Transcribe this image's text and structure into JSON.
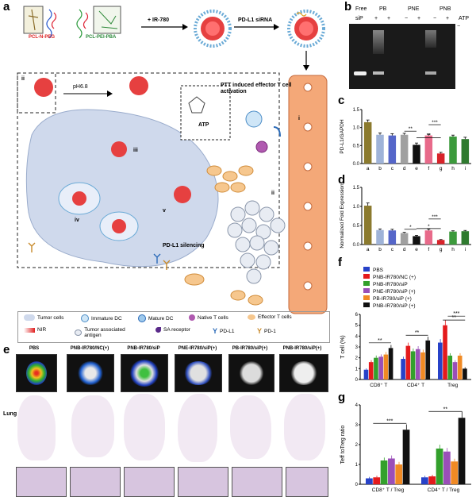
{
  "panels": {
    "a": "a",
    "b": "b",
    "c": "c",
    "d": "d",
    "e": "e",
    "f": "f",
    "g": "g"
  },
  "panel_a": {
    "components": [
      "PCL-N-PEG",
      "PCL-PEI-PBA"
    ],
    "step1": "+ IR-780",
    "step2": "PD-L1 siRNA",
    "step_ii": "ii",
    "ph": "pH6.8",
    "atp": "ATP",
    "step_iii": "iii",
    "step_iv": "iv",
    "step_v": "v",
    "silencing": "PD-L1 silencing",
    "ptt_title": "PTT induced effector T cell activation",
    "vessel_i": "i",
    "tissue_ii": "ii",
    "legend": [
      "Tumor cells",
      "Immature DC",
      "Mature DC",
      "Native T cells",
      "Effector T cells",
      "NIR",
      "Tumor associated antigen",
      "SA receptor",
      "PD-L1",
      "PD-1"
    ]
  },
  "panel_b": {
    "lanes": [
      "Free",
      "PB",
      "PNE",
      "PNB"
    ],
    "sip_label": "siP",
    "atp_label": "ATP",
    "signs": [
      "+",
      "+",
      "−",
      "+",
      "−",
      "+",
      "−"
    ]
  },
  "panel_e": {
    "titles": [
      "PBS",
      "PNB-IR780/NC(+)",
      "PNB-IR780/siP",
      "PNE-IR780/siP(+)",
      "PB-IR780/siP(+)",
      "PNB-IR780/siP(+)"
    ],
    "row_label": "Lung"
  },
  "chart_data": [
    {
      "id": "c",
      "type": "bar",
      "ylabel": "PD-L1/GAPDH",
      "categories": [
        "a",
        "b",
        "c",
        "d",
        "e",
        "f",
        "g",
        "h",
        "i"
      ],
      "values": [
        1.15,
        0.8,
        0.78,
        0.8,
        0.52,
        0.78,
        0.28,
        0.75,
        0.68
      ],
      "errors": [
        0.06,
        0.05,
        0.05,
        0.04,
        0.05,
        0.04,
        0.03,
        0.04,
        0.05
      ],
      "ylim": [
        0,
        1.5
      ],
      "yticks": [
        0,
        0.5,
        1.0,
        1.5
      ],
      "colors": [
        "#8b7a2e",
        "#9fb3d8",
        "#5566c9",
        "#a0a0a0",
        "#111111",
        "#e86a8a",
        "#d8232a",
        "#3c9a3c",
        "#2f7a2f"
      ],
      "annotations": [
        "**",
        "**",
        "***"
      ]
    },
    {
      "id": "d",
      "type": "bar",
      "ylabel": "Normalized Fold Expression",
      "categories": [
        "a",
        "b",
        "c",
        "d",
        "e",
        "f",
        "g",
        "h",
        "i"
      ],
      "values": [
        1.02,
        0.38,
        0.37,
        0.3,
        0.22,
        0.37,
        0.12,
        0.34,
        0.35
      ],
      "errors": [
        0.07,
        0.03,
        0.03,
        0.02,
        0.02,
        0.03,
        0.01,
        0.02,
        0.02
      ],
      "ylim": [
        0,
        1.5
      ],
      "yticks": [
        0,
        0.5,
        1.0,
        1.5
      ],
      "colors": [
        "#8b7a2e",
        "#9fb3d8",
        "#5566c9",
        "#a0a0a0",
        "#111111",
        "#e86a8a",
        "#d8232a",
        "#3c9a3c",
        "#2f7a2f"
      ],
      "annotations": [
        "*",
        "*",
        "***"
      ]
    },
    {
      "id": "f",
      "type": "bar",
      "ylabel": "T cell (%)",
      "categories": [
        "CD8⁺ T",
        "CD4⁺ T",
        "Treg"
      ],
      "series": [
        {
          "name": "PBS",
          "values": [
            0.9,
            1.9,
            3.4
          ],
          "color": "#2742c8"
        },
        {
          "name": "PNB-IR780/NC (+)",
          "values": [
            1.6,
            3.1,
            5.0
          ],
          "color": "#e41a1c"
        },
        {
          "name": "PNB-IR780/siP",
          "values": [
            2.0,
            2.6,
            2.2
          ],
          "color": "#33a02c"
        },
        {
          "name": "PNE-IR780/siP (+)",
          "values": [
            2.1,
            2.8,
            1.6
          ],
          "color": "#9a4fb8"
        },
        {
          "name": "PB-IR780/siP (+)",
          "values": [
            2.3,
            2.5,
            2.2
          ],
          "color": "#f08a24"
        },
        {
          "name": "PNB-IR780/siP (+)",
          "values": [
            2.9,
            3.6,
            1.0
          ],
          "color": "#111111"
        }
      ],
      "ylim": [
        0,
        6
      ],
      "yticks": [
        0,
        1,
        2,
        3,
        4,
        5,
        6
      ],
      "annotations": [
        "**",
        "**",
        "**",
        "***"
      ]
    },
    {
      "id": "g",
      "type": "bar",
      "ylabel": "Teff toTreg ratio",
      "categories": [
        "CD8⁺ T / Treg",
        "CD4⁺ T / Treg"
      ],
      "series": [
        {
          "name": "PBS",
          "values": [
            0.3,
            0.35
          ],
          "color": "#2742c8"
        },
        {
          "name": "PNB-IR780/NC (+)",
          "values": [
            0.35,
            0.4
          ],
          "color": "#e41a1c"
        },
        {
          "name": "PNB-IR780/siP",
          "values": [
            1.2,
            1.8
          ],
          "color": "#33a02c"
        },
        {
          "name": "PNE-IR780/siP (+)",
          "values": [
            1.3,
            1.65
          ],
          "color": "#9a4fb8"
        },
        {
          "name": "PB-IR780/siP (+)",
          "values": [
            1.0,
            1.15
          ],
          "color": "#f08a24"
        },
        {
          "name": "PNB-IR780/siP (+)",
          "values": [
            2.75,
            3.35
          ],
          "color": "#111111"
        }
      ],
      "ylim": [
        0,
        4
      ],
      "yticks": [
        0,
        1,
        2,
        3,
        4
      ],
      "annotations": [
        "***",
        "**"
      ]
    }
  ]
}
